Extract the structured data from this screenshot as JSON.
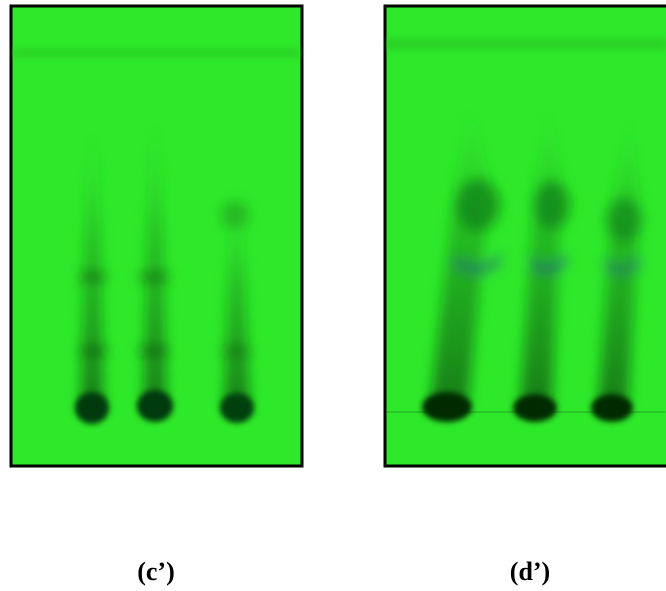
{
  "panels": [
    {
      "label": "(c’)"
    },
    {
      "label": "(d’)"
    }
  ]
}
